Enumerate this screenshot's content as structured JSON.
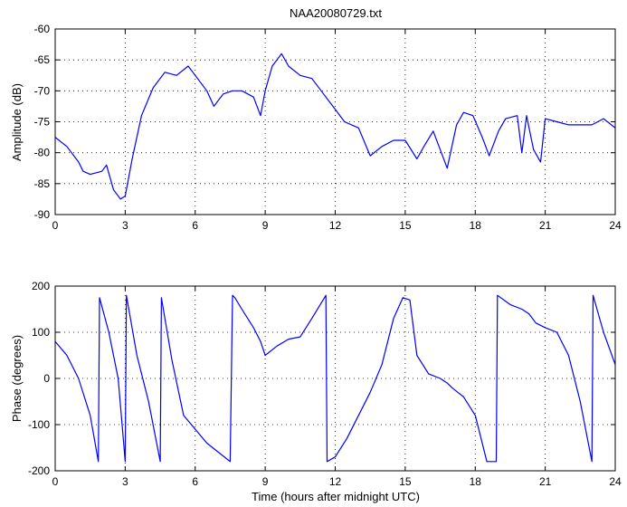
{
  "title": "NAA20080729.txt",
  "xlabel": "Time (hours after midnight UTC)",
  "colors": {
    "series": "#0000ff",
    "axes": "#000000",
    "grid": "#000000",
    "background": "#ffffff"
  },
  "chart_data": [
    {
      "type": "line",
      "title": "NAA20080729.txt",
      "xlabel": "",
      "ylabel": "Amplitude (dB)",
      "xlim": [
        0,
        24
      ],
      "ylim": [
        -90,
        -60
      ],
      "xticks": [
        "0",
        "3",
        "6",
        "9",
        "12",
        "15",
        "18",
        "21",
        "24"
      ],
      "yticks": [
        "-60",
        "-65",
        "-70",
        "-75",
        "-80",
        "-85",
        "-90"
      ],
      "grid": true,
      "series": [
        {
          "x": [
            0,
            0.5,
            1.0,
            1.2,
            1.5,
            2.0,
            2.2,
            2.5,
            2.8,
            3.0,
            3.3,
            3.7,
            4.2,
            4.7,
            5.2,
            5.7,
            6.0,
            6.5,
            6.8,
            7.2,
            7.6,
            8.0,
            8.5,
            8.8,
            9.0,
            9.3,
            9.7,
            10.0,
            10.5,
            11.0,
            11.5,
            12.0,
            12.4,
            13.0,
            13.5,
            14.0,
            14.5,
            15.0,
            15.5,
            15.8,
            16.2,
            16.8,
            17.2,
            17.5,
            17.9,
            18.3,
            18.6,
            19.0,
            19.3,
            19.8,
            20.0,
            20.2,
            20.5,
            20.8,
            21.0,
            21.5,
            22.0,
            22.5,
            23.0,
            23.5,
            24.0
          ],
          "values": [
            -77.5,
            -79,
            -81.5,
            -83,
            -83.5,
            -83,
            -82,
            -86,
            -87.5,
            -87,
            -81,
            -74,
            -69.5,
            -67,
            -67.5,
            -66,
            -67.5,
            -70,
            -72.5,
            -70.5,
            -70,
            -70,
            -71,
            -74,
            -70,
            -66,
            -64,
            -66,
            -67.5,
            -68,
            -70.5,
            -73,
            -75,
            -76,
            -80.5,
            -79,
            -78,
            -78,
            -81,
            -79,
            -76.5,
            -82.5,
            -75.5,
            -73.5,
            -74,
            -77.5,
            -80.5,
            -76.5,
            -74.5,
            -74,
            -80,
            -74,
            -79.5,
            -81.5,
            -74.5,
            -75,
            -75.5,
            -75.5,
            -75.5,
            -74.5,
            -76
          ]
        }
      ]
    },
    {
      "type": "line",
      "title": "",
      "xlabel": "Time (hours after midnight UTC)",
      "ylabel": "Phase (degrees)",
      "xlim": [
        0,
        24
      ],
      "ylim": [
        -200,
        200
      ],
      "xticks": [
        "0",
        "3",
        "6",
        "9",
        "12",
        "15",
        "18",
        "21",
        "24"
      ],
      "yticks": [
        "200",
        "100",
        "0",
        "-100",
        "-200"
      ],
      "grid": true,
      "series": [
        {
          "x": [
            0,
            0.5,
            1.0,
            1.5,
            1.85,
            1.9,
            2.3,
            2.7,
            3.0,
            3.05,
            3.5,
            4.0,
            4.5,
            4.55,
            5.0,
            5.5,
            6.0,
            6.5,
            7.0,
            7.5,
            7.6,
            7.7,
            8.0,
            8.5,
            8.8,
            9.0,
            9.5,
            10.0,
            10.5,
            11.0,
            11.6,
            11.65,
            12.0,
            12.5,
            13.0,
            13.5,
            14.0,
            14.5,
            14.9,
            15.2,
            15.5,
            16.0,
            16.5,
            16.8,
            17.0,
            17.5,
            18.0,
            18.5,
            18.9,
            18.95,
            19.5,
            20.0,
            20.3,
            20.6,
            21.0,
            21.5,
            22.0,
            22.5,
            23.0,
            23.05,
            23.5,
            24.0
          ],
          "values": [
            80,
            50,
            0,
            -80,
            -180,
            175,
            100,
            0,
            -180,
            180,
            50,
            -50,
            -180,
            175,
            40,
            -80,
            -110,
            -140,
            -160,
            -180,
            180,
            175,
            150,
            110,
            80,
            50,
            70,
            85,
            90,
            130,
            180,
            -180,
            -170,
            -130,
            -80,
            -30,
            30,
            130,
            175,
            170,
            50,
            10,
            0,
            -10,
            -20,
            -40,
            -80,
            -180,
            -180,
            180,
            160,
            150,
            140,
            120,
            110,
            100,
            50,
            -50,
            -180,
            180,
            100,
            30
          ]
        }
      ]
    }
  ]
}
